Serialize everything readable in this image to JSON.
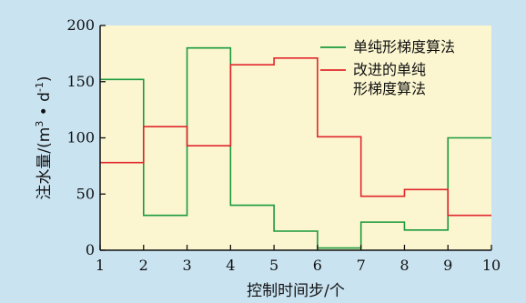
{
  "colors": {
    "figure_background": "#c9e3f1",
    "plot_background": "#fbf6d0",
    "axis": "#111111"
  },
  "chart_data": {
    "type": "line",
    "step": "post",
    "xlabel": "控制时间步/个",
    "ylabel": "注水量/(m³·d⁻¹)",
    "ylabel_parts": {
      "prefix": "注水量/(m",
      "sup1": "3",
      "middle": " • d",
      "sup2": "-1",
      "suffix": ")"
    },
    "xlim": [
      1,
      10
    ],
    "ylim": [
      0,
      200
    ],
    "xticks": [
      1,
      2,
      3,
      4,
      5,
      6,
      7,
      8,
      9,
      10
    ],
    "yticks": [
      0,
      50,
      100,
      150,
      200
    ],
    "grid": false,
    "legend_position": "top-right",
    "x": [
      1,
      2,
      3,
      4,
      5,
      6,
      7,
      8,
      9,
      10
    ],
    "series": [
      {
        "name": "单纯形梯度算法",
        "name_lines": [
          "单纯形梯度算法"
        ],
        "color": "#1a9a3c",
        "values": [
          152,
          31,
          180,
          40,
          17,
          2,
          25,
          18,
          100,
          100
        ]
      },
      {
        "name": "改进的单纯形梯度算法",
        "name_lines": [
          "改进的单纯",
          "形梯度算法"
        ],
        "color": "#e0262c",
        "values": [
          78,
          110,
          93,
          165,
          171,
          101,
          48,
          54,
          31,
          31
        ]
      }
    ]
  }
}
